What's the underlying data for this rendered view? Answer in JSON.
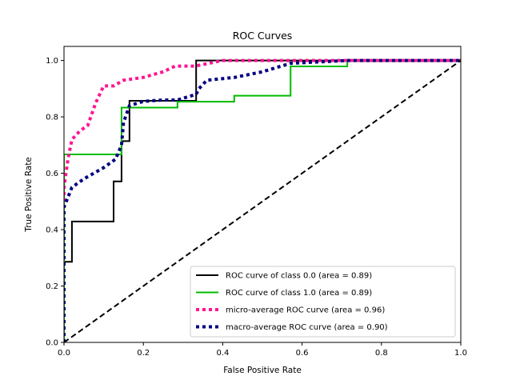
{
  "chart_data": {
    "type": "line",
    "title": "ROC Curves",
    "xlabel": "False Positive Rate",
    "ylabel": "True Positive Rate",
    "xlim": [
      0,
      1
    ],
    "ylim": [
      0,
      1.05
    ],
    "xticks": [
      "0.0",
      "0.2",
      "0.4",
      "0.6",
      "0.8",
      "1.0"
    ],
    "yticks": [
      "0.0",
      "0.2",
      "0.4",
      "0.6",
      "0.8",
      "1.0"
    ],
    "grid": false,
    "legend_position": "lower-right",
    "series": [
      {
        "name": "ROC curve of class 0.0 (area = 0.89)",
        "color": "#000000",
        "style": "solid",
        "x": [
          0.0,
          0.0,
          0.02,
          0.02,
          0.125,
          0.125,
          0.145,
          0.145,
          0.165,
          0.165,
          0.333,
          0.333,
          1.0
        ],
        "y": [
          0.0,
          0.286,
          0.286,
          0.429,
          0.429,
          0.571,
          0.571,
          0.714,
          0.714,
          0.857,
          0.857,
          1.0,
          1.0
        ]
      },
      {
        "name": "ROC curve of class 1.0 (area = 0.89)",
        "color": "#00bb00",
        "style": "solid",
        "x": [
          0.0,
          0.0,
          0.145,
          0.145,
          0.286,
          0.286,
          0.429,
          0.429,
          0.571,
          0.571,
          0.714,
          0.714,
          1.0
        ],
        "y": [
          0.0,
          0.667,
          0.667,
          0.833,
          0.833,
          0.854,
          0.854,
          0.875,
          0.875,
          0.979,
          0.979,
          1.0,
          1.0
        ]
      },
      {
        "name": "micro-average ROC curve (area = 0.96)",
        "color": "#ff1493",
        "style": "dotted",
        "x": [
          0.0,
          0.0,
          0.01,
          0.02,
          0.04,
          0.06,
          0.08,
          0.1,
          0.125,
          0.15,
          0.2,
          0.25,
          0.28,
          0.33,
          0.4,
          0.5,
          0.6,
          0.7,
          0.8,
          1.0
        ],
        "y": [
          0.0,
          0.55,
          0.65,
          0.72,
          0.75,
          0.77,
          0.85,
          0.91,
          0.91,
          0.93,
          0.94,
          0.96,
          0.98,
          0.98,
          1.0,
          1.0,
          1.0,
          1.0,
          1.0,
          1.0
        ]
      },
      {
        "name": "macro-average ROC curve (area = 0.90)",
        "color": "#000080",
        "style": "dotted",
        "x": [
          0.0,
          0.0,
          0.02,
          0.05,
          0.1,
          0.13,
          0.145,
          0.15,
          0.165,
          0.2,
          0.25,
          0.286,
          0.333,
          0.34,
          0.36,
          0.43,
          0.5,
          0.571,
          0.714,
          1.0
        ],
        "y": [
          0.0,
          0.48,
          0.55,
          0.58,
          0.62,
          0.65,
          0.7,
          0.78,
          0.84,
          0.855,
          0.86,
          0.86,
          0.88,
          0.9,
          0.93,
          0.94,
          0.96,
          0.99,
          1.0,
          1.0
        ]
      },
      {
        "name": "",
        "color": "#000000",
        "style": "dashed",
        "x": [
          0.0,
          1.0
        ],
        "y": [
          0.0,
          1.0
        ]
      }
    ]
  }
}
